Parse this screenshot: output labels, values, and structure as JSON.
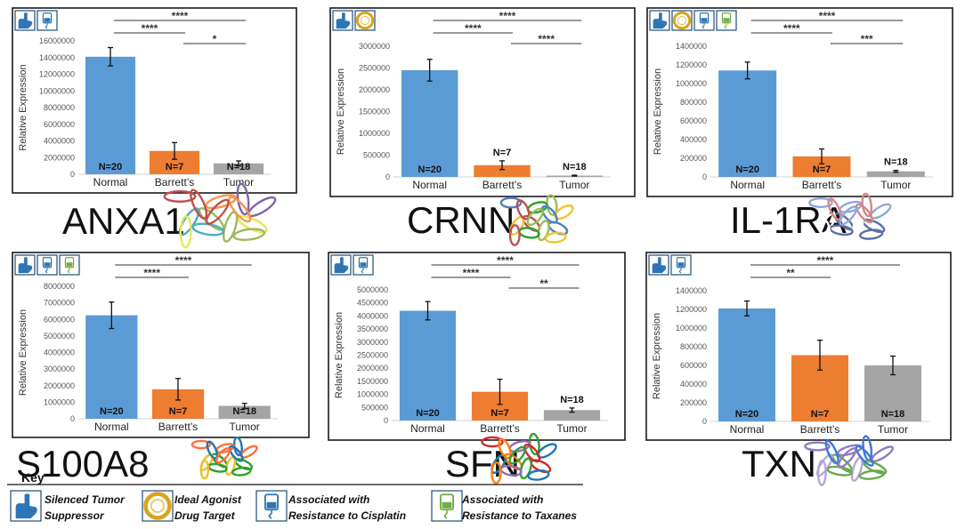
{
  "key": {
    "title": "Key",
    "items": [
      {
        "icon": "hand-icon",
        "lines": [
          "Silenced Tumor",
          "Suppressor"
        ]
      },
      {
        "icon": "target-icon",
        "lines": [
          "Ideal Agonist",
          "Drug Target"
        ]
      },
      {
        "icon": "iv-bag-blue-icon",
        "lines": [
          "Associated with",
          "Resistance to Cisplatin"
        ]
      },
      {
        "icon": "iv-bag-green-icon",
        "lines": [
          "Associated with",
          "Resistance to Taxanes"
        ]
      }
    ]
  },
  "colors": {
    "Normal": "#5b9bd5",
    "Barrett's": "#ed7d31",
    "Tumor": "#a5a5a5"
  },
  "chart_data": [
    {
      "type": "bar",
      "gene": "ANXA1",
      "icons": [
        "hand-icon",
        "iv-bag-blue-icon"
      ],
      "categories": [
        "Normal",
        "Barrett’s",
        "Tumor"
      ],
      "values": [
        14100000,
        2800000,
        1300000
      ],
      "errors": [
        1100000,
        1000000,
        300000
      ],
      "n_labels": [
        "N=20",
        "N=7",
        "N=18"
      ],
      "n_inside": [
        true,
        true,
        true
      ],
      "ylabel": "Relative Expression",
      "ylim": [
        0,
        16000000
      ],
      "yticks": [
        0,
        2000000,
        4000000,
        6000000,
        8000000,
        10000000,
        12000000,
        14000000,
        16000000
      ],
      "significance": [
        {
          "from": 0,
          "to": 2,
          "label": "****"
        },
        {
          "from": 0,
          "to": 1,
          "label": "****"
        },
        {
          "from": 1,
          "to": 2,
          "label": "*"
        }
      ]
    },
    {
      "type": "bar",
      "gene": "CRNN",
      "icons": [
        "hand-icon",
        "target-icon"
      ],
      "categories": [
        "Normal",
        "Barrett’s",
        "Tumor"
      ],
      "values": [
        2450000,
        270000,
        30000
      ],
      "errors": [
        250000,
        100000,
        10000
      ],
      "n_labels": [
        "N=20",
        "N=7",
        "N=18"
      ],
      "n_inside": [
        true,
        false,
        false
      ],
      "ylabel": "Relative Expression",
      "ylim": [
        0,
        3000000
      ],
      "yticks": [
        0,
        500000,
        1000000,
        1500000,
        2000000,
        2500000,
        3000000
      ],
      "significance": [
        {
          "from": 0,
          "to": 2,
          "label": "****"
        },
        {
          "from": 0,
          "to": 1,
          "label": "****"
        },
        {
          "from": 1,
          "to": 2,
          "label": "****"
        }
      ]
    },
    {
      "type": "bar",
      "gene": "IL-1RA",
      "icons": [
        "hand-icon",
        "target-icon",
        "iv-bag-blue-icon",
        "iv-bag-green-icon"
      ],
      "categories": [
        "Normal",
        "Barrett’s",
        "Tumor"
      ],
      "values": [
        1140000,
        220000,
        60000
      ],
      "errors": [
        90000,
        80000,
        10000
      ],
      "n_labels": [
        "N=20",
        "N=7",
        "N=18"
      ],
      "n_inside": [
        true,
        true,
        false
      ],
      "ylabel": "Relative Expression",
      "ylim": [
        0,
        1400000
      ],
      "yticks": [
        0,
        200000,
        400000,
        600000,
        800000,
        1000000,
        1200000,
        1400000
      ],
      "significance": [
        {
          "from": 0,
          "to": 2,
          "label": "****"
        },
        {
          "from": 0,
          "to": 1,
          "label": "****"
        },
        {
          "from": 1,
          "to": 2,
          "label": "***"
        }
      ]
    },
    {
      "type": "bar",
      "gene": "S100A8",
      "icons": [
        "hand-icon",
        "iv-bag-blue-icon",
        "iv-bag-green-icon"
      ],
      "categories": [
        "Normal",
        "Barrett’s",
        "Tumor"
      ],
      "values": [
        6250000,
        1780000,
        780000
      ],
      "errors": [
        800000,
        650000,
        150000
      ],
      "n_labels": [
        "N=20",
        "N=7",
        "N=18"
      ],
      "n_inside": [
        true,
        true,
        true
      ],
      "ylabel": "Relative Expression",
      "ylim": [
        0,
        8000000
      ],
      "yticks": [
        0,
        1000000,
        2000000,
        3000000,
        4000000,
        5000000,
        6000000,
        7000000,
        8000000
      ],
      "significance": [
        {
          "from": 0,
          "to": 2,
          "label": "****"
        },
        {
          "from": 0,
          "to": 1,
          "label": "****"
        }
      ]
    },
    {
      "type": "bar",
      "gene": "SFN",
      "icons": [
        "hand-icon",
        "iv-bag-blue-icon"
      ],
      "categories": [
        "Normal",
        "Barrett’s",
        "Tumor"
      ],
      "values": [
        4200000,
        1100000,
        400000
      ],
      "errors": [
        350000,
        480000,
        80000
      ],
      "n_labels": [
        "N=20",
        "N=7",
        "N=18"
      ],
      "n_inside": [
        true,
        true,
        false
      ],
      "ylabel": "Relative Expression",
      "ylim": [
        0,
        5000000
      ],
      "yticks": [
        0,
        500000,
        1000000,
        1500000,
        2000000,
        2500000,
        3000000,
        3500000,
        4000000,
        4500000,
        5000000
      ],
      "significance": [
        {
          "from": 0,
          "to": 2,
          "label": "****"
        },
        {
          "from": 0,
          "to": 1,
          "label": "****"
        },
        {
          "from": 1,
          "to": 2,
          "label": "**"
        }
      ]
    },
    {
      "type": "bar",
      "gene": "TXN",
      "icons": [
        "hand-icon",
        "iv-bag-blue-icon"
      ],
      "categories": [
        "Normal",
        "Barrett’s",
        "Tumor"
      ],
      "values": [
        1210000,
        710000,
        600000
      ],
      "errors": [
        80000,
        160000,
        100000
      ],
      "n_labels": [
        "N=20",
        "N=7",
        "N=18"
      ],
      "n_inside": [
        true,
        true,
        true
      ],
      "ylabel": "Relative Expression",
      "ylim": [
        0,
        1400000
      ],
      "yticks": [
        0,
        200000,
        400000,
        600000,
        800000,
        1000000,
        1200000,
        1400000
      ],
      "significance": [
        {
          "from": 0,
          "to": 2,
          "label": "****"
        },
        {
          "from": 0,
          "to": 1,
          "label": "**"
        }
      ]
    }
  ]
}
